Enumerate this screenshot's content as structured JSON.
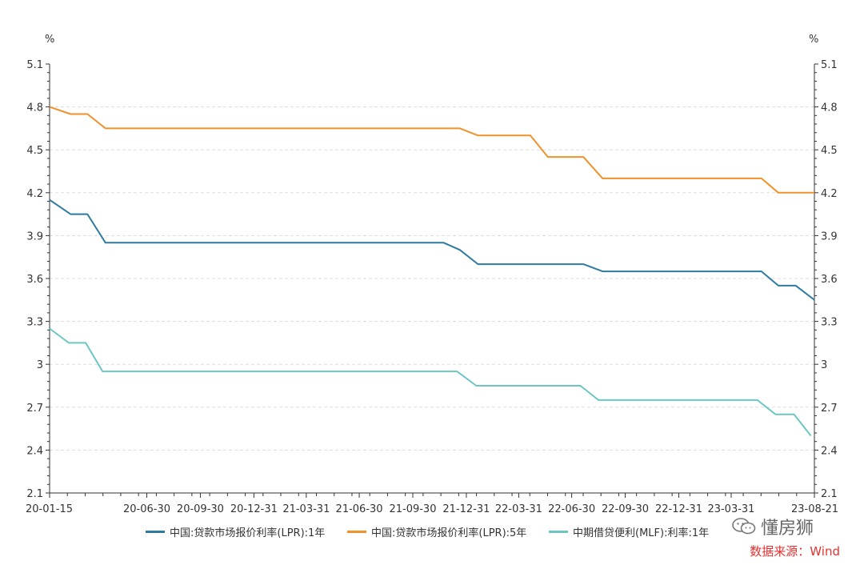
{
  "chart_data": {
    "type": "line",
    "unit_left": "%",
    "unit_right": "%",
    "y_ticks": [
      "5.1",
      "4.8",
      "4.5",
      "4.2",
      "3.9",
      "3.6",
      "3.3",
      "3",
      "2.7",
      "2.4",
      "2.1"
    ],
    "ylim": [
      2.1,
      5.1
    ],
    "x_tick_labels": [
      "20-01-15",
      "20-06-30",
      "20-09-30",
      "20-12-31",
      "21-03-31",
      "21-06-30",
      "21-09-30",
      "21-12-31",
      "22-03-31",
      "22-06-30",
      "22-09-30",
      "22-12-31",
      "23-03-31",
      "23-08-21"
    ],
    "xlim": [
      "2020-01-15",
      "2023-08-21"
    ],
    "grid": "horizontal dashed",
    "legend_position": "bottom",
    "series": [
      {
        "name": "中国:贷款市场报价利率(LPR):1年",
        "color": "#2e7aa1",
        "points": [
          [
            "2020-01-15",
            4.15
          ],
          [
            "2020-02-20",
            4.05
          ],
          [
            "2020-03-20",
            4.05
          ],
          [
            "2020-04-20",
            3.85
          ],
          [
            "2021-11-22",
            3.85
          ],
          [
            "2021-12-20",
            3.8
          ],
          [
            "2022-01-20",
            3.7
          ],
          [
            "2022-07-20",
            3.7
          ],
          [
            "2022-08-22",
            3.65
          ],
          [
            "2023-05-22",
            3.65
          ],
          [
            "2023-06-20",
            3.55
          ],
          [
            "2023-07-20",
            3.55
          ],
          [
            "2023-08-21",
            3.45
          ]
        ]
      },
      {
        "name": "中国:贷款市场报价利率(LPR):5年",
        "color": "#f0912a",
        "points": [
          [
            "2020-01-15",
            4.8
          ],
          [
            "2020-02-20",
            4.75
          ],
          [
            "2020-03-20",
            4.75
          ],
          [
            "2020-04-20",
            4.65
          ],
          [
            "2021-12-20",
            4.65
          ],
          [
            "2022-01-20",
            4.6
          ],
          [
            "2022-04-20",
            4.6
          ],
          [
            "2022-05-20",
            4.45
          ],
          [
            "2022-07-20",
            4.45
          ],
          [
            "2022-08-22",
            4.3
          ],
          [
            "2023-05-22",
            4.3
          ],
          [
            "2023-06-20",
            4.2
          ],
          [
            "2023-08-21",
            4.2
          ]
        ]
      },
      {
        "name": "中期借贷便利(MLF):利率:1年",
        "color": "#6cc6c4",
        "points": [
          [
            "2020-01-15",
            3.25
          ],
          [
            "2020-02-17",
            3.15
          ],
          [
            "2020-03-17",
            3.15
          ],
          [
            "2020-04-15",
            2.95
          ],
          [
            "2021-12-15",
            2.95
          ],
          [
            "2022-01-17",
            2.85
          ],
          [
            "2022-07-15",
            2.85
          ],
          [
            "2022-08-15",
            2.75
          ],
          [
            "2023-05-15",
            2.75
          ],
          [
            "2023-06-15",
            2.65
          ],
          [
            "2023-07-17",
            2.65
          ],
          [
            "2023-08-15",
            2.5
          ]
        ]
      }
    ]
  },
  "watermark": {
    "icon": "wechat-icon",
    "text": "懂房狮"
  },
  "source_note": "数据来源：Wind"
}
